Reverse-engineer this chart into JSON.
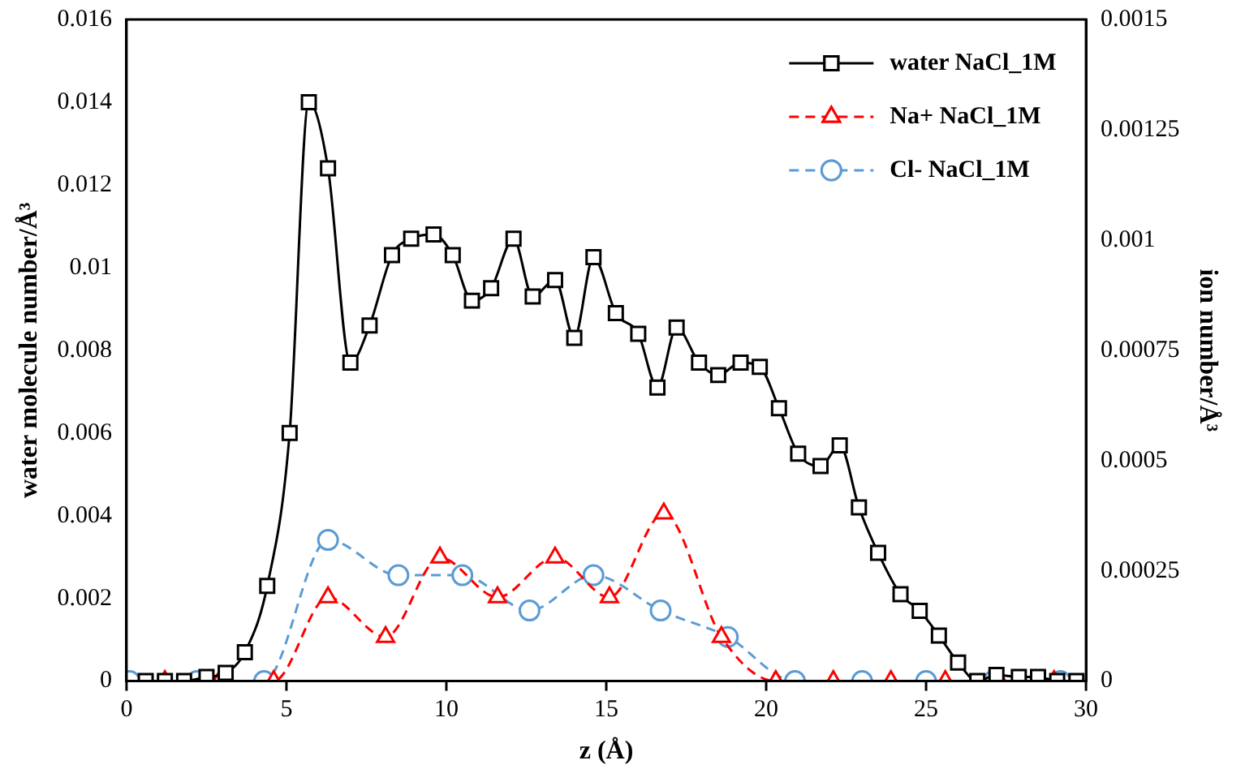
{
  "chart_data": {
    "type": "line",
    "xlabel": "z (Å)",
    "ylabel": "water molecule number/Å³",
    "y2label": "ion number/Å³",
    "xlim": [
      0,
      30
    ],
    "xticks": [
      0,
      5,
      10,
      15,
      20,
      25,
      30
    ],
    "ylim": [
      0,
      0.016
    ],
    "yticks": [
      0,
      0.002,
      0.004,
      0.006,
      0.008,
      0.01,
      0.012,
      0.014,
      0.016
    ],
    "y2lim": [
      0,
      0.0015
    ],
    "y2ticks": [
      0,
      0.00025,
      0.0005,
      0.00075,
      0.001,
      0.00125,
      0.0015
    ],
    "grid": false,
    "legend": "top right",
    "series": [
      {
        "name": "water NaCl_1M",
        "color": "#000000",
        "marker": "square",
        "line_style": "solid",
        "x": [
          0.6,
          1.2,
          1.8,
          2.5,
          3.1,
          3.7,
          4.4,
          5.1,
          5.7,
          6.3,
          7.0,
          7.6,
          8.3,
          8.9,
          9.6,
          10.2,
          10.8,
          11.4,
          12.1,
          12.7,
          13.4,
          14.0,
          14.6,
          15.3,
          16.0,
          16.6,
          17.2,
          17.9,
          18.5,
          19.2,
          19.8,
          20.4,
          21.0,
          21.7,
          22.3,
          22.9,
          23.5,
          24.2,
          24.8,
          25.4,
          26.0,
          26.6,
          27.2,
          27.9,
          28.5,
          29.1,
          29.7
        ],
        "values": [
          0,
          0,
          0,
          0.0001,
          0.0002,
          0.0007,
          0.0023,
          0.006,
          0.014,
          0.0124,
          0.0077,
          0.0086,
          0.0103,
          0.0107,
          0.0108,
          0.0103,
          0.0092,
          0.0095,
          0.0107,
          0.0093,
          0.0097,
          0.0083,
          0.01025,
          0.0089,
          0.0084,
          0.0071,
          0.00855,
          0.0077,
          0.0074,
          0.0077,
          0.0076,
          0.0066,
          0.0055,
          0.0052,
          0.0057,
          0.0042,
          0.0031,
          0.0021,
          0.0017,
          0.0011,
          0.00045,
          0,
          0.00015,
          0.0001,
          0.0001,
          0,
          0
        ]
      },
      {
        "name": "Na+ NaCl_1M",
        "color": "#ff0000",
        "marker": "triangle",
        "line_style": "dashed",
        "axis": "y2",
        "x": [
          1.2,
          2.9,
          4.6,
          6.3,
          8.1,
          9.8,
          11.6,
          13.4,
          15.1,
          16.8,
          18.6,
          20.3,
          22.1,
          23.9,
          25.6,
          27.3,
          29.0
        ],
        "values": [
          0,
          0,
          0,
          0.00019,
          0.0001,
          0.00028,
          0.00019,
          0.00028,
          0.00019,
          0.00038,
          0.0001,
          0,
          0,
          0,
          0,
          0,
          0
        ]
      },
      {
        "name": "Cl- NaCl_1M",
        "color": "#5b9bd5",
        "marker": "circle",
        "line_style": "dashed",
        "axis": "y2",
        "x": [
          0.1,
          2.2,
          4.3,
          6.3,
          8.5,
          10.5,
          12.6,
          14.6,
          16.7,
          18.8,
          20.9,
          23.0,
          25.0,
          27.1,
          29.2
        ],
        "values": [
          0,
          0,
          0,
          0.00032,
          0.00024,
          0.00024,
          0.00016,
          0.00024,
          0.00016,
          0.0001,
          0,
          0,
          0,
          0,
          0
        ]
      }
    ]
  }
}
